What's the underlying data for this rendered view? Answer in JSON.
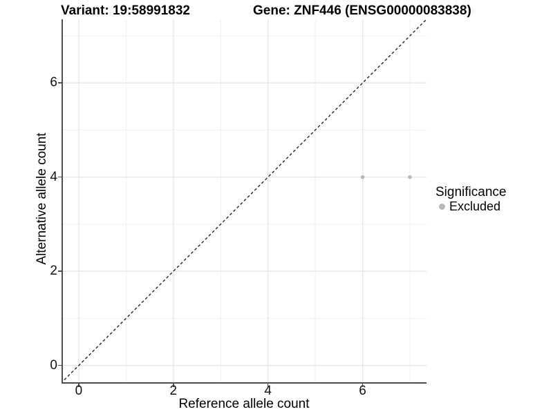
{
  "titles": {
    "variant": "Variant: 19:58991832",
    "gene": "Gene: ZNF446 (ENSG00000083838)"
  },
  "axes": {
    "x": {
      "label": "Reference allele count"
    },
    "y": {
      "label": "Alternative allele count"
    }
  },
  "legend": {
    "title": "Significance",
    "items": [
      {
        "label": "Excluded",
        "color": "#b8b8b8"
      }
    ]
  },
  "colors": {
    "axis_line": "#4d4d4d",
    "grid_major": "#e7e7e7",
    "grid_minor": "#efefef",
    "point": "#b8b8b8",
    "diagonal": "#151515",
    "background": "#ffffff"
  },
  "chart_data": {
    "type": "scatter",
    "title": "Variant: 19:58991832    Gene: ZNF446 (ENSG00000083838)",
    "xlabel": "Reference allele count",
    "ylabel": "Alternative allele count",
    "xlim": [
      -0.35,
      7.35
    ],
    "ylim": [
      -0.35,
      7.35
    ],
    "x_ticks": [
      0,
      2,
      4,
      6
    ],
    "y_ticks": [
      0,
      2,
      4,
      6
    ],
    "x_minor_ticks": [
      1,
      3,
      5,
      7
    ],
    "y_minor_ticks": [
      1,
      3,
      5,
      7
    ],
    "grid": true,
    "legend_position": "right",
    "abline": {
      "slope": 1,
      "intercept": 0,
      "linetype": "dashed",
      "color": "#151515"
    },
    "series": [
      {
        "name": "Excluded",
        "color": "#b8b8b8",
        "points": [
          {
            "x": 6,
            "y": 4
          },
          {
            "x": 7,
            "y": 4
          }
        ]
      }
    ]
  }
}
